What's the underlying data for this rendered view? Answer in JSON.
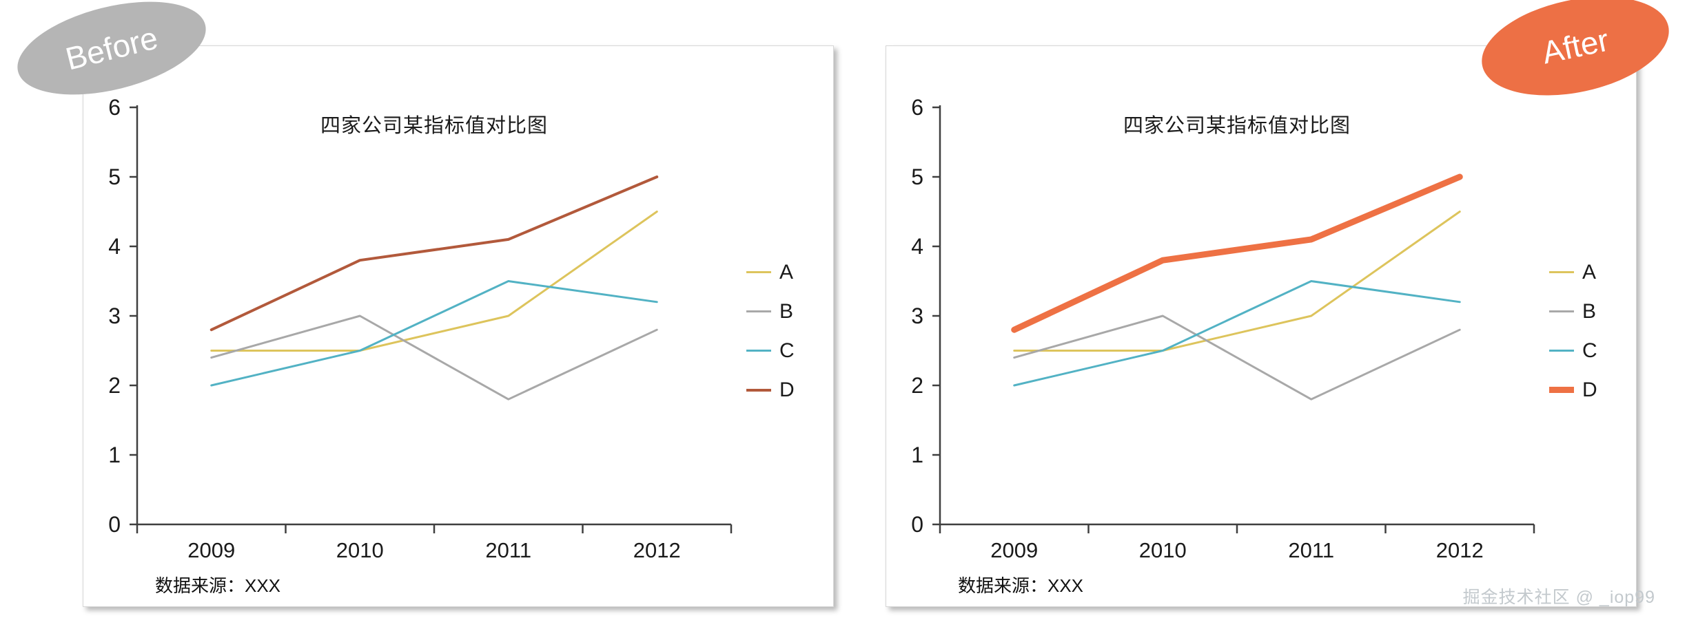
{
  "page": {
    "watermark": "掘金技术社区 @ _iop99"
  },
  "badges": {
    "before": "Before",
    "after": "After"
  },
  "colors": {
    "badge_before": "#b5b5b5",
    "badge_after": "#ed7045",
    "axis": "#3f3f3f",
    "text": "#1a1a1a"
  },
  "chart_data": [
    {
      "id": "before",
      "type": "line",
      "title": "四家公司某指标值对比图",
      "x": [
        "2009",
        "2010",
        "2011",
        "2012"
      ],
      "series": [
        {
          "name": "A",
          "values": [
            2.5,
            2.5,
            3.0,
            4.5
          ],
          "color": "#ddc45c",
          "width": 3
        },
        {
          "name": "B",
          "values": [
            2.4,
            3.0,
            1.8,
            2.8
          ],
          "color": "#a8a8a8",
          "width": 3
        },
        {
          "name": "C",
          "values": [
            2.0,
            2.5,
            3.5,
            3.2
          ],
          "color": "#52b2c4",
          "width": 3
        },
        {
          "name": "D",
          "values": [
            2.8,
            3.8,
            4.1,
            5.0
          ],
          "color": "#b2593b",
          "width": 4
        }
      ],
      "ylim": [
        0,
        6
      ],
      "ytick_step": 1,
      "grid": false,
      "legend_position": "right",
      "source_note": "数据来源：XXX"
    },
    {
      "id": "after",
      "type": "line",
      "title": "四家公司某指标值对比图",
      "x": [
        "2009",
        "2010",
        "2011",
        "2012"
      ],
      "series": [
        {
          "name": "A",
          "values": [
            2.5,
            2.5,
            3.0,
            4.5
          ],
          "color": "#ddc45c",
          "width": 3
        },
        {
          "name": "B",
          "values": [
            2.4,
            3.0,
            1.8,
            2.8
          ],
          "color": "#a8a8a8",
          "width": 3
        },
        {
          "name": "C",
          "values": [
            2.0,
            2.5,
            3.5,
            3.2
          ],
          "color": "#52b2c4",
          "width": 3
        },
        {
          "name": "D",
          "values": [
            2.8,
            3.8,
            4.1,
            5.0
          ],
          "color": "#ee7144",
          "width": 9
        }
      ],
      "ylim": [
        0,
        6
      ],
      "ytick_step": 1,
      "grid": false,
      "legend_position": "right",
      "source_note": "数据来源：XXX"
    }
  ]
}
